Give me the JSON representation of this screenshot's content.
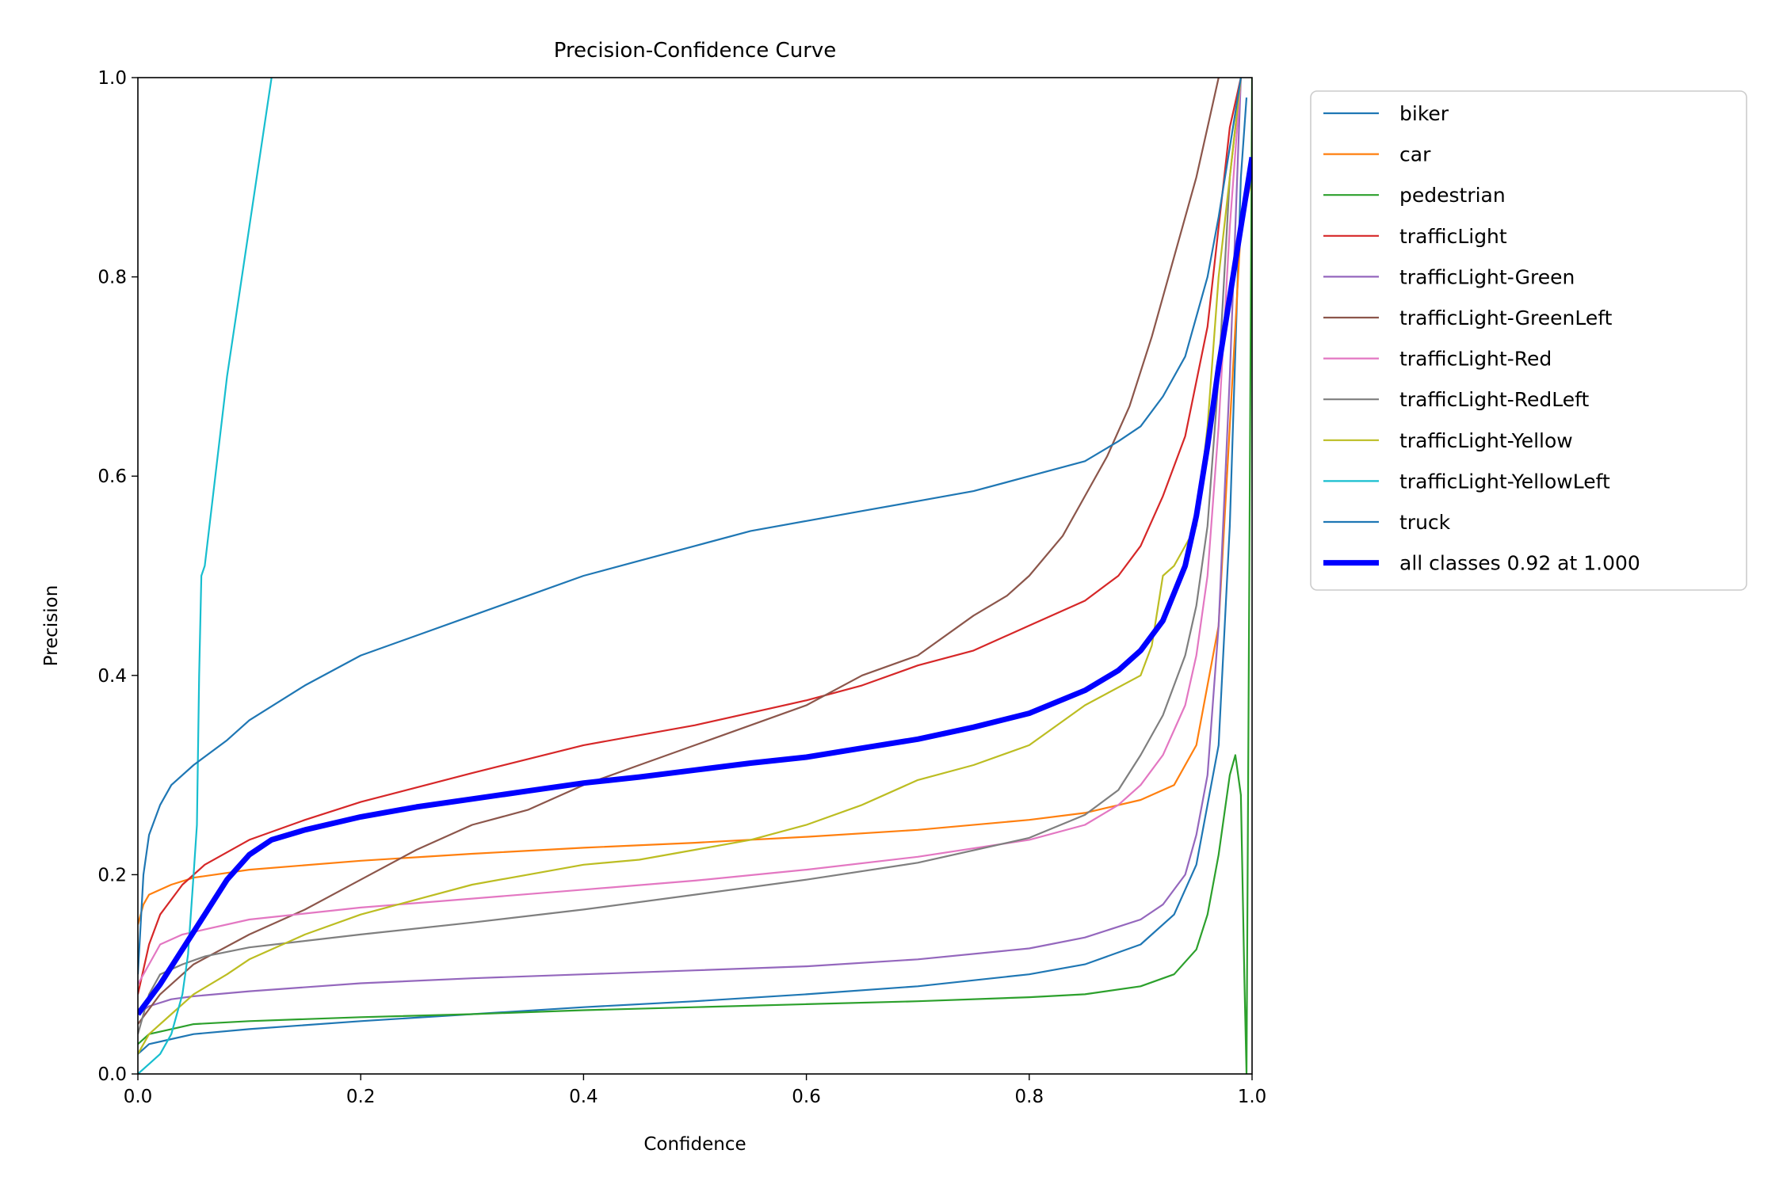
{
  "chart_data": {
    "type": "line",
    "title": "Precision-Confidence Curve",
    "xlabel": "Confidence",
    "ylabel": "Precision",
    "xlim": [
      0.0,
      1.0
    ],
    "ylim": [
      0.0,
      1.0
    ],
    "xticks": [
      "0.0",
      "0.2",
      "0.4",
      "0.6",
      "0.8",
      "1.0"
    ],
    "yticks": [
      "0.0",
      "0.2",
      "0.4",
      "0.6",
      "0.8",
      "1.0"
    ],
    "grid": false,
    "legend_position": "outside upper right",
    "series": [
      {
        "name": "biker",
        "color": "#1f77b4",
        "points": [
          [
            0,
            0.02
          ],
          [
            0.01,
            0.03
          ],
          [
            0.03,
            0.035
          ],
          [
            0.05,
            0.04
          ],
          [
            0.1,
            0.045
          ],
          [
            0.2,
            0.053
          ],
          [
            0.3,
            0.06
          ],
          [
            0.4,
            0.067
          ],
          [
            0.5,
            0.073
          ],
          [
            0.6,
            0.08
          ],
          [
            0.7,
            0.088
          ],
          [
            0.8,
            0.1
          ],
          [
            0.85,
            0.11
          ],
          [
            0.9,
            0.13
          ],
          [
            0.93,
            0.16
          ],
          [
            0.95,
            0.21
          ],
          [
            0.97,
            0.33
          ],
          [
            0.98,
            0.55
          ],
          [
            0.99,
            0.9
          ],
          [
            0.995,
            0.98
          ]
        ]
      },
      {
        "name": "car",
        "color": "#ff7f0e",
        "points": [
          [
            0,
            0.15
          ],
          [
            0.005,
            0.17
          ],
          [
            0.01,
            0.18
          ],
          [
            0.03,
            0.19
          ],
          [
            0.05,
            0.197
          ],
          [
            0.1,
            0.205
          ],
          [
            0.2,
            0.214
          ],
          [
            0.3,
            0.221
          ],
          [
            0.4,
            0.227
          ],
          [
            0.5,
            0.232
          ],
          [
            0.6,
            0.238
          ],
          [
            0.7,
            0.245
          ],
          [
            0.8,
            0.255
          ],
          [
            0.85,
            0.262
          ],
          [
            0.9,
            0.275
          ],
          [
            0.93,
            0.29
          ],
          [
            0.95,
            0.33
          ],
          [
            0.97,
            0.45
          ],
          [
            0.98,
            0.65
          ],
          [
            0.99,
            0.85
          ],
          [
            1.0,
            0.9
          ]
        ]
      },
      {
        "name": "pedestrian",
        "color": "#2ca02c",
        "points": [
          [
            0,
            0.03
          ],
          [
            0.01,
            0.04
          ],
          [
            0.03,
            0.045
          ],
          [
            0.05,
            0.05
          ],
          [
            0.1,
            0.053
          ],
          [
            0.2,
            0.057
          ],
          [
            0.3,
            0.06
          ],
          [
            0.4,
            0.064
          ],
          [
            0.5,
            0.067
          ],
          [
            0.6,
            0.07
          ],
          [
            0.7,
            0.073
          ],
          [
            0.8,
            0.077
          ],
          [
            0.85,
            0.08
          ],
          [
            0.9,
            0.088
          ],
          [
            0.93,
            0.1
          ],
          [
            0.95,
            0.125
          ],
          [
            0.96,
            0.16
          ],
          [
            0.97,
            0.22
          ],
          [
            0.98,
            0.3
          ],
          [
            0.985,
            0.32
          ],
          [
            0.99,
            0.28
          ],
          [
            0.993,
            0.1
          ],
          [
            0.995,
            0.0
          ],
          [
            1.0,
            1.0
          ]
        ]
      },
      {
        "name": "trafficLight",
        "color": "#d62728",
        "points": [
          [
            0,
            0.08
          ],
          [
            0.01,
            0.13
          ],
          [
            0.02,
            0.16
          ],
          [
            0.04,
            0.19
          ],
          [
            0.06,
            0.21
          ],
          [
            0.1,
            0.235
          ],
          [
            0.15,
            0.255
          ],
          [
            0.2,
            0.273
          ],
          [
            0.3,
            0.302
          ],
          [
            0.4,
            0.33
          ],
          [
            0.5,
            0.35
          ],
          [
            0.6,
            0.375
          ],
          [
            0.65,
            0.39
          ],
          [
            0.7,
            0.41
          ],
          [
            0.75,
            0.425
          ],
          [
            0.8,
            0.45
          ],
          [
            0.85,
            0.475
          ],
          [
            0.88,
            0.5
          ],
          [
            0.9,
            0.53
          ],
          [
            0.92,
            0.58
          ],
          [
            0.94,
            0.64
          ],
          [
            0.96,
            0.75
          ],
          [
            0.97,
            0.85
          ],
          [
            0.98,
            0.95
          ],
          [
            0.99,
            1.0
          ]
        ]
      },
      {
        "name": "trafficLight-Green",
        "color": "#9467bd",
        "points": [
          [
            0,
            0.06
          ],
          [
            0.01,
            0.068
          ],
          [
            0.03,
            0.075
          ],
          [
            0.05,
            0.078
          ],
          [
            0.1,
            0.083
          ],
          [
            0.2,
            0.091
          ],
          [
            0.3,
            0.096
          ],
          [
            0.4,
            0.1
          ],
          [
            0.5,
            0.104
          ],
          [
            0.6,
            0.108
          ],
          [
            0.7,
            0.115
          ],
          [
            0.8,
            0.126
          ],
          [
            0.85,
            0.137
          ],
          [
            0.9,
            0.155
          ],
          [
            0.92,
            0.17
          ],
          [
            0.94,
            0.2
          ],
          [
            0.95,
            0.24
          ],
          [
            0.96,
            0.3
          ],
          [
            0.97,
            0.45
          ],
          [
            0.98,
            0.7
          ],
          [
            0.99,
            1.0
          ]
        ]
      },
      {
        "name": "trafficLight-GreenLeft",
        "color": "#8c564b",
        "points": [
          [
            0,
            0.05
          ],
          [
            0.02,
            0.08
          ],
          [
            0.05,
            0.11
          ],
          [
            0.1,
            0.14
          ],
          [
            0.15,
            0.165
          ],
          [
            0.2,
            0.195
          ],
          [
            0.25,
            0.225
          ],
          [
            0.3,
            0.25
          ],
          [
            0.35,
            0.265
          ],
          [
            0.4,
            0.29
          ],
          [
            0.45,
            0.31
          ],
          [
            0.5,
            0.33
          ],
          [
            0.55,
            0.35
          ],
          [
            0.6,
            0.37
          ],
          [
            0.65,
            0.4
          ],
          [
            0.7,
            0.42
          ],
          [
            0.75,
            0.46
          ],
          [
            0.78,
            0.48
          ],
          [
            0.8,
            0.5
          ],
          [
            0.83,
            0.54
          ],
          [
            0.85,
            0.58
          ],
          [
            0.87,
            0.62
          ],
          [
            0.89,
            0.67
          ],
          [
            0.91,
            0.74
          ],
          [
            0.93,
            0.82
          ],
          [
            0.95,
            0.9
          ],
          [
            0.96,
            0.95
          ],
          [
            0.97,
            1.0
          ]
        ]
      },
      {
        "name": "trafficLight-Red",
        "color": "#e377c2",
        "points": [
          [
            0,
            0.09
          ],
          [
            0.01,
            0.11
          ],
          [
            0.02,
            0.13
          ],
          [
            0.04,
            0.14
          ],
          [
            0.06,
            0.145
          ],
          [
            0.1,
            0.155
          ],
          [
            0.2,
            0.167
          ],
          [
            0.3,
            0.176
          ],
          [
            0.4,
            0.185
          ],
          [
            0.5,
            0.194
          ],
          [
            0.6,
            0.205
          ],
          [
            0.7,
            0.218
          ],
          [
            0.8,
            0.235
          ],
          [
            0.85,
            0.25
          ],
          [
            0.88,
            0.27
          ],
          [
            0.9,
            0.29
          ],
          [
            0.92,
            0.32
          ],
          [
            0.94,
            0.37
          ],
          [
            0.95,
            0.42
          ],
          [
            0.96,
            0.5
          ],
          [
            0.97,
            0.65
          ],
          [
            0.98,
            0.85
          ],
          [
            0.99,
            1.0
          ]
        ]
      },
      {
        "name": "trafficLight-RedLeft",
        "color": "#7f7f7f",
        "points": [
          [
            0,
            0.04
          ],
          [
            0.01,
            0.08
          ],
          [
            0.02,
            0.1
          ],
          [
            0.04,
            0.11
          ],
          [
            0.06,
            0.118
          ],
          [
            0.1,
            0.127
          ],
          [
            0.2,
            0.14
          ],
          [
            0.3,
            0.152
          ],
          [
            0.4,
            0.165
          ],
          [
            0.5,
            0.18
          ],
          [
            0.6,
            0.195
          ],
          [
            0.7,
            0.212
          ],
          [
            0.8,
            0.237
          ],
          [
            0.85,
            0.26
          ],
          [
            0.88,
            0.285
          ],
          [
            0.9,
            0.32
          ],
          [
            0.92,
            0.36
          ],
          [
            0.94,
            0.42
          ],
          [
            0.95,
            0.47
          ],
          [
            0.96,
            0.55
          ],
          [
            0.97,
            0.7
          ],
          [
            0.98,
            0.9
          ],
          [
            0.99,
            1.0
          ]
        ]
      },
      {
        "name": "trafficLight-Yellow",
        "color": "#bcbd22",
        "points": [
          [
            0,
            0.02
          ],
          [
            0.01,
            0.04
          ],
          [
            0.03,
            0.06
          ],
          [
            0.05,
            0.08
          ],
          [
            0.08,
            0.1
          ],
          [
            0.1,
            0.115
          ],
          [
            0.15,
            0.14
          ],
          [
            0.2,
            0.16
          ],
          [
            0.25,
            0.175
          ],
          [
            0.3,
            0.19
          ],
          [
            0.35,
            0.2
          ],
          [
            0.4,
            0.21
          ],
          [
            0.45,
            0.215
          ],
          [
            0.5,
            0.225
          ],
          [
            0.55,
            0.235
          ],
          [
            0.6,
            0.25
          ],
          [
            0.65,
            0.27
          ],
          [
            0.7,
            0.295
          ],
          [
            0.75,
            0.31
          ],
          [
            0.8,
            0.33
          ],
          [
            0.85,
            0.37
          ],
          [
            0.9,
            0.4
          ],
          [
            0.91,
            0.43
          ],
          [
            0.92,
            0.5
          ],
          [
            0.93,
            0.51
          ],
          [
            0.95,
            0.55
          ],
          [
            0.96,
            0.65
          ],
          [
            0.97,
            0.8
          ],
          [
            0.98,
            0.9
          ],
          [
            0.99,
            1.0
          ]
        ]
      },
      {
        "name": "trafficLight-YellowLeft",
        "color": "#17becf",
        "points": [
          [
            0,
            0.0
          ],
          [
            0.01,
            0.01
          ],
          [
            0.02,
            0.02
          ],
          [
            0.03,
            0.04
          ],
          [
            0.04,
            0.08
          ],
          [
            0.045,
            0.12
          ],
          [
            0.05,
            0.2
          ],
          [
            0.053,
            0.25
          ],
          [
            0.055,
            0.4
          ],
          [
            0.057,
            0.5
          ],
          [
            0.06,
            0.51
          ],
          [
            0.08,
            0.7
          ],
          [
            0.1,
            0.85
          ],
          [
            0.12,
            1.0
          ]
        ]
      },
      {
        "name": "truck",
        "color": "#1f77b4",
        "points": [
          [
            0,
            0.1
          ],
          [
            0.005,
            0.2
          ],
          [
            0.01,
            0.24
          ],
          [
            0.02,
            0.27
          ],
          [
            0.03,
            0.29
          ],
          [
            0.05,
            0.31
          ],
          [
            0.08,
            0.335
          ],
          [
            0.1,
            0.355
          ],
          [
            0.15,
            0.39
          ],
          [
            0.2,
            0.42
          ],
          [
            0.25,
            0.44
          ],
          [
            0.3,
            0.46
          ],
          [
            0.35,
            0.48
          ],
          [
            0.4,
            0.5
          ],
          [
            0.45,
            0.515
          ],
          [
            0.5,
            0.53
          ],
          [
            0.55,
            0.545
          ],
          [
            0.6,
            0.555
          ],
          [
            0.65,
            0.565
          ],
          [
            0.7,
            0.575
          ],
          [
            0.75,
            0.585
          ],
          [
            0.8,
            0.6
          ],
          [
            0.85,
            0.615
          ],
          [
            0.88,
            0.635
          ],
          [
            0.9,
            0.65
          ],
          [
            0.92,
            0.68
          ],
          [
            0.94,
            0.72
          ],
          [
            0.95,
            0.76
          ],
          [
            0.96,
            0.8
          ],
          [
            0.97,
            0.86
          ],
          [
            0.98,
            0.93
          ],
          [
            0.99,
            1.0
          ]
        ]
      },
      {
        "name": "all classes 0.92 at 1.000",
        "color": "#0000ff",
        "bold": true,
        "points": [
          [
            0,
            0.06
          ],
          [
            0.02,
            0.09
          ],
          [
            0.04,
            0.125
          ],
          [
            0.06,
            0.16
          ],
          [
            0.08,
            0.195
          ],
          [
            0.1,
            0.22
          ],
          [
            0.12,
            0.235
          ],
          [
            0.15,
            0.245
          ],
          [
            0.2,
            0.258
          ],
          [
            0.25,
            0.268
          ],
          [
            0.3,
            0.276
          ],
          [
            0.35,
            0.284
          ],
          [
            0.4,
            0.292
          ],
          [
            0.45,
            0.298
          ],
          [
            0.5,
            0.305
          ],
          [
            0.55,
            0.312
          ],
          [
            0.6,
            0.318
          ],
          [
            0.65,
            0.327
          ],
          [
            0.7,
            0.336
          ],
          [
            0.75,
            0.348
          ],
          [
            0.8,
            0.362
          ],
          [
            0.85,
            0.385
          ],
          [
            0.88,
            0.405
          ],
          [
            0.9,
            0.425
          ],
          [
            0.92,
            0.455
          ],
          [
            0.94,
            0.51
          ],
          [
            0.95,
            0.56
          ],
          [
            0.96,
            0.63
          ],
          [
            0.97,
            0.71
          ],
          [
            0.98,
            0.78
          ],
          [
            0.99,
            0.85
          ],
          [
            1.0,
            0.92
          ]
        ]
      }
    ]
  }
}
